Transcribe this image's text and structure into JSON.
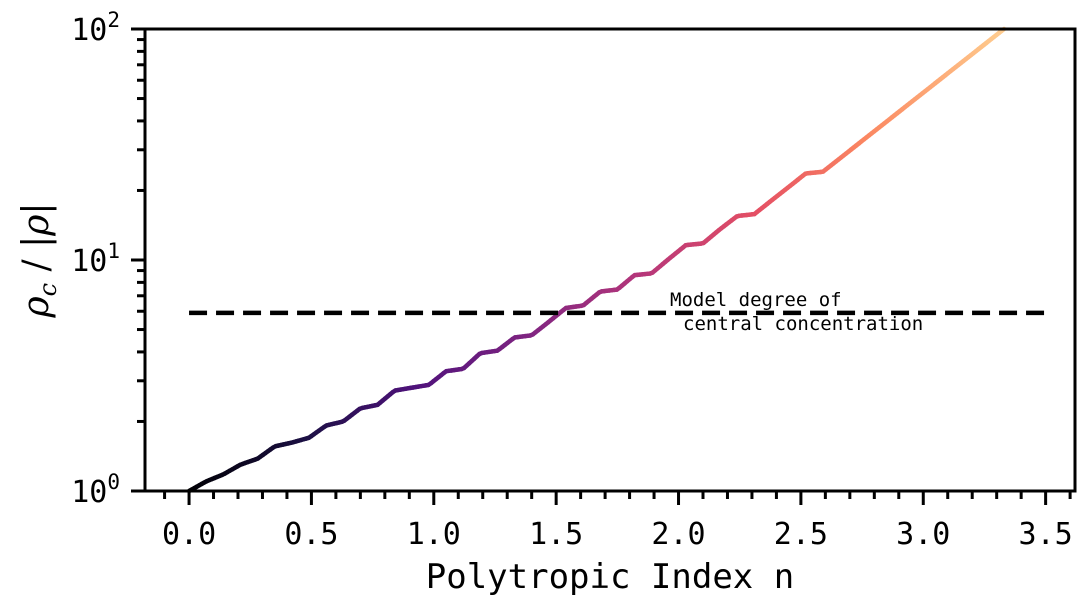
{
  "chart_data": {
    "type": "line",
    "xlabel": "Polytropic Index n",
    "ylabel": "ρ_c / |ρ|",
    "xlim": [
      -0.18,
      3.62
    ],
    "ylim": [
      1,
      100
    ],
    "yscale": "log",
    "grid": false,
    "legend": "none",
    "x_ticks": [
      "0.0",
      "0.5",
      "1.0",
      "1.5",
      "2.0",
      "2.5",
      "3.0",
      "3.5"
    ],
    "y_ticks": [
      {
        "base": "10",
        "exp": "0"
      },
      {
        "base": "10",
        "exp": "1"
      },
      {
        "base": "10",
        "exp": "2"
      }
    ],
    "series": [
      {
        "colormap": "magma",
        "x": [
          0.0,
          0.07,
          0.14,
          0.21,
          0.28,
          0.35,
          0.42,
          0.49,
          0.56,
          0.63,
          0.7,
          0.77,
          0.84,
          0.91,
          0.98,
          1.05,
          1.12,
          1.19,
          1.26,
          1.33,
          1.4,
          1.47,
          1.54,
          1.61,
          1.68,
          1.75,
          1.82,
          1.89,
          1.96,
          2.03,
          2.1,
          2.17,
          2.24,
          2.31,
          2.38,
          2.45,
          2.52,
          2.59,
          3.33
        ],
        "y": [
          1.0,
          1.1,
          1.18,
          1.3,
          1.38,
          1.56,
          1.62,
          1.7,
          1.92,
          2.0,
          2.28,
          2.36,
          2.72,
          2.8,
          2.88,
          3.3,
          3.38,
          3.95,
          4.05,
          4.62,
          4.72,
          5.4,
          6.2,
          6.35,
          7.3,
          7.45,
          8.6,
          8.75,
          10.1,
          11.6,
          11.8,
          13.6,
          15.5,
          15.8,
          18.1,
          20.7,
          23.7,
          24.1,
          100
        ]
      }
    ],
    "reference_line": {
      "y": 5.9,
      "x_range": [
        0.0,
        3.5
      ],
      "style": "dashed",
      "color": "#000000"
    },
    "annotation": {
      "line1": "Model degree of",
      "line2": "central concentration",
      "x": 2.0,
      "y": 6.0
    }
  }
}
